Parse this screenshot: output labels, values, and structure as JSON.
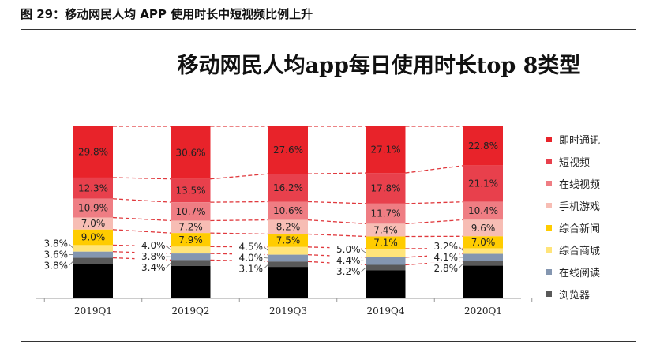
{
  "caption": "图 29：移动网民人均 APP 使用时长中短视频比例上升",
  "chart_data": {
    "type": "bar",
    "stacked": true,
    "title": "移动网民人均app每日使用时长top 8类型",
    "categories": [
      "2019Q1",
      "2019Q2",
      "2019Q3",
      "2019Q4",
      "2020Q1"
    ],
    "ylim": [
      0,
      100
    ],
    "legend_position": "right",
    "connector_lines": "dashed",
    "series": [
      {
        "name": "即时通讯",
        "color": "#e8232a",
        "values": [
          29.8,
          30.6,
          27.6,
          27.1,
          22.8
        ]
      },
      {
        "name": "短视频",
        "color": "#e8404c",
        "values": [
          12.3,
          13.5,
          16.2,
          17.8,
          21.1
        ]
      },
      {
        "name": "在线视频",
        "color": "#ef7d83",
        "values": [
          10.9,
          10.7,
          10.6,
          11.7,
          10.4
        ]
      },
      {
        "name": "手机游戏",
        "color": "#f7bdb4",
        "values": [
          7.0,
          7.2,
          8.2,
          7.4,
          9.6
        ]
      },
      {
        "name": "综合新闻",
        "color": "#ffcc00",
        "values": [
          9.0,
          7.9,
          7.5,
          7.1,
          7.0
        ]
      },
      {
        "name": "综合商城",
        "color": "#ffe47a",
        "values": [
          3.8,
          4.0,
          4.5,
          5.0,
          3.2
        ]
      },
      {
        "name": "在线阅读",
        "color": "#8496b0",
        "values": [
          3.6,
          3.8,
          4.0,
          4.4,
          4.1
        ]
      },
      {
        "name": "浏览器",
        "color": "#595959",
        "values": [
          3.8,
          3.4,
          3.1,
          3.2,
          2.8
        ]
      },
      {
        "color": "#000000",
        "values": [
          19.8,
          18.9,
          18.3,
          16.3,
          19.0
        ],
        "labels": false
      }
    ]
  }
}
